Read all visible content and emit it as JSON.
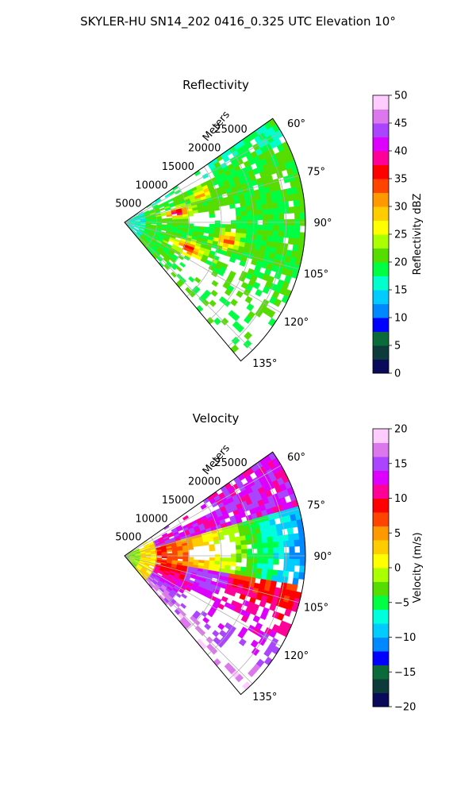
{
  "figure": {
    "suptitle": "SKYLER-HU  SN14_202  0416_0.325 UTC Elevation 10°"
  },
  "chart_data": [
    {
      "type": "heatmap",
      "projection": "polar-sector",
      "title": "Reflectivity",
      "radial_label": "Meters",
      "radial_ticks": [
        5000,
        10000,
        15000,
        20000,
        25000
      ],
      "radial_tick_labels": [
        "5000",
        "10000",
        "15000",
        "20000",
        "25000"
      ],
      "range_max_m": 28000,
      "azimuth_range_deg": [
        55,
        140
      ],
      "azimuth_ticks_deg": [
        60,
        75,
        90,
        105,
        120,
        135
      ],
      "azimuth_tick_labels": [
        "60°",
        "75°",
        "90°",
        "105°",
        "120°",
        "135°"
      ],
      "colorbar": {
        "label": "Reflectivity dBZ",
        "vmin": 0,
        "vmax": 50,
        "ticks": [
          0,
          5,
          10,
          15,
          20,
          25,
          30,
          35,
          40,
          45,
          50
        ],
        "tick_labels": [
          "0",
          "5",
          "10",
          "15",
          "20",
          "25",
          "30",
          "35",
          "40",
          "45",
          "50"
        ],
        "colormap": [
          "#0a0a5a",
          "#0d3a3a",
          "#0a6a3a",
          "#0000ff",
          "#0088ff",
          "#00ccff",
          "#00ffcc",
          "#00ff44",
          "#55dd00",
          "#aaff00",
          "#ffff00",
          "#ffcc00",
          "#ff9900",
          "#ff4400",
          "#ff0000",
          "#ff0099",
          "#dd00ff",
          "#aa44ff",
          "#dd77ee",
          "#ffccff"
        ]
      }
    },
    {
      "type": "heatmap",
      "projection": "polar-sector",
      "title": "Velocity",
      "radial_label": "Meters",
      "radial_ticks": [
        5000,
        10000,
        15000,
        20000,
        25000
      ],
      "radial_tick_labels": [
        "5000",
        "10000",
        "15000",
        "20000",
        "25000"
      ],
      "range_max_m": 28000,
      "azimuth_range_deg": [
        55,
        140
      ],
      "azimuth_ticks_deg": [
        60,
        75,
        90,
        105,
        120,
        135
      ],
      "azimuth_tick_labels": [
        "60°",
        "75°",
        "90°",
        "105°",
        "120°",
        "135°"
      ],
      "colorbar": {
        "label": "Velocity (m/s)",
        "vmin": -20,
        "vmax": 20,
        "ticks": [
          -20,
          -15,
          -10,
          -5,
          0,
          5,
          10,
          15,
          20
        ],
        "tick_labels": [
          "−20",
          "−15",
          "−10",
          "−5",
          "0",
          "5",
          "10",
          "15",
          "20"
        ],
        "colormap": [
          "#0a0a5a",
          "#0d3a3a",
          "#0a6a3a",
          "#0000ff",
          "#0088ff",
          "#00ccff",
          "#00ffdd",
          "#00ff44",
          "#55dd00",
          "#aaff00",
          "#ffff00",
          "#ffcc00",
          "#ff9900",
          "#ff4400",
          "#ff0000",
          "#ff0099",
          "#dd00ff",
          "#aa44ff",
          "#dd77ee",
          "#ffccff"
        ]
      }
    }
  ]
}
